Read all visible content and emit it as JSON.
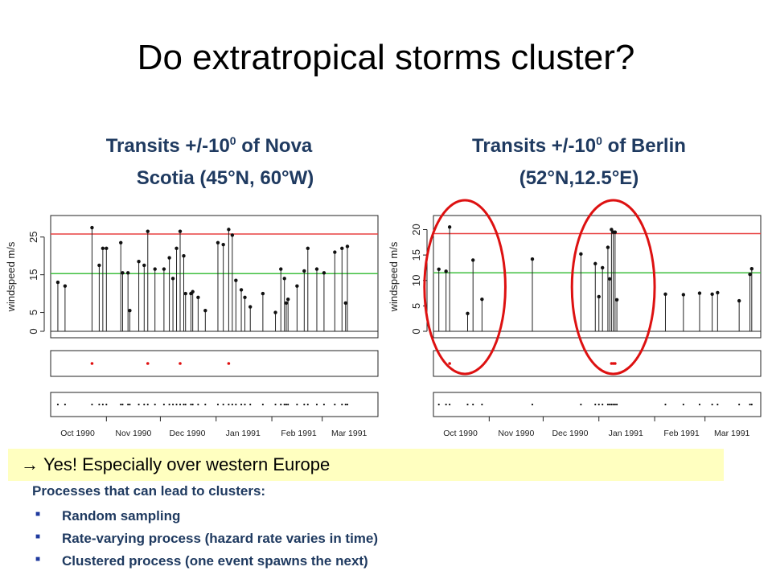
{
  "slide": {
    "title": "Do extratropical storms cluster?",
    "left_title": {
      "line1_pre": "Transits +/-10",
      "line1_sup": "0",
      "line1_post": " of Nova",
      "line2": "Scotia (45°N, 60°W)"
    },
    "right_title": {
      "line1_pre": "Transits +/-10",
      "line1_sup": "0",
      "line1_post": " of Berlin",
      "line2": "(52°N,12.5°E)"
    },
    "highlight": {
      "arrow": "→",
      "text": "Yes! Especially over western Europe"
    },
    "processes": {
      "heading": "Processes that can lead to clusters:",
      "items": [
        "Random sampling",
        "Rate-varying process (hazard rate varies in time)",
        "Clustered process (one event spawns the next)"
      ],
      "bullet_color": "#1f3a9e"
    }
  },
  "chart_data": [
    {
      "type": "lollipop",
      "panel": "Nova Scotia",
      "ylabel": "windspeed m/s",
      "ylim": [
        0,
        29
      ],
      "yticks": [
        0,
        5,
        15,
        25
      ],
      "xlim": [
        0,
        182
      ],
      "months": [
        {
          "label": "Oct 1990",
          "day": 15
        },
        {
          "label": "Nov 1990",
          "day": 46
        },
        {
          "label": "Dec 1990",
          "day": 76
        },
        {
          "label": "Jan 1991",
          "day": 107
        },
        {
          "label": "Feb 1991",
          "day": 138
        },
        {
          "label": "Mar 1991",
          "day": 166
        }
      ],
      "month_breaks": [
        31,
        61,
        92,
        123,
        151
      ],
      "thresholds": [
        {
          "value": 25.8,
          "color": "#e84040"
        },
        {
          "value": 15.3,
          "color": "#3fbf3f"
        }
      ],
      "events": [
        {
          "day": 4,
          "value": 13
        },
        {
          "day": 8,
          "value": 12
        },
        {
          "day": 23,
          "value": 27.5
        },
        {
          "day": 27,
          "value": 17.5
        },
        {
          "day": 29,
          "value": 22
        },
        {
          "day": 31,
          "value": 22
        },
        {
          "day": 39,
          "value": 23.5
        },
        {
          "day": 40,
          "value": 15.5
        },
        {
          "day": 43,
          "value": 15.5
        },
        {
          "day": 44,
          "value": 5.5
        },
        {
          "day": 49,
          "value": 18.5
        },
        {
          "day": 52,
          "value": 17.5
        },
        {
          "day": 54,
          "value": 26.5
        },
        {
          "day": 58,
          "value": 16.5
        },
        {
          "day": 63,
          "value": 16.5
        },
        {
          "day": 66,
          "value": 19.5
        },
        {
          "day": 68,
          "value": 14
        },
        {
          "day": 70,
          "value": 22
        },
        {
          "day": 72,
          "value": 26.5
        },
        {
          "day": 74,
          "value": 20
        },
        {
          "day": 75,
          "value": 10
        },
        {
          "day": 78,
          "value": 10
        },
        {
          "day": 79,
          "value": 10.5
        },
        {
          "day": 82,
          "value": 9
        },
        {
          "day": 86,
          "value": 5.5
        },
        {
          "day": 93,
          "value": 23.5
        },
        {
          "day": 96,
          "value": 23
        },
        {
          "day": 99,
          "value": 27
        },
        {
          "day": 101,
          "value": 25.5
        },
        {
          "day": 103,
          "value": 13.5
        },
        {
          "day": 106,
          "value": 11
        },
        {
          "day": 108,
          "value": 9
        },
        {
          "day": 111,
          "value": 6.5
        },
        {
          "day": 118,
          "value": 10
        },
        {
          "day": 125,
          "value": 5
        },
        {
          "day": 128,
          "value": 16.5
        },
        {
          "day": 130,
          "value": 14
        },
        {
          "day": 131,
          "value": 7.5
        },
        {
          "day": 132,
          "value": 8.5
        },
        {
          "day": 137,
          "value": 12
        },
        {
          "day": 141,
          "value": 16
        },
        {
          "day": 143,
          "value": 22
        },
        {
          "day": 148,
          "value": 16.5
        },
        {
          "day": 152,
          "value": 15.5
        },
        {
          "day": 158,
          "value": 21
        },
        {
          "day": 162,
          "value": 22
        },
        {
          "day": 164,
          "value": 7.5
        },
        {
          "day": 165,
          "value": 22.5
        }
      ],
      "exceed_days": [
        23,
        54,
        72,
        99
      ],
      "circles": []
    },
    {
      "type": "lollipop",
      "panel": "Berlin",
      "ylabel": "windspeed m/s",
      "ylim": [
        0,
        21.5
      ],
      "yticks": [
        0,
        5,
        10,
        15,
        20
      ],
      "xlim": [
        0,
        182
      ],
      "months": [
        {
          "label": "Oct 1990",
          "day": 15
        },
        {
          "label": "Nov 1990",
          "day": 46
        },
        {
          "label": "Dec 1990",
          "day": 76
        },
        {
          "label": "Jan 1991",
          "day": 107
        },
        {
          "label": "Feb 1991",
          "day": 138
        },
        {
          "label": "Mar 1991",
          "day": 166
        }
      ],
      "month_breaks": [
        31,
        61,
        92,
        123,
        151
      ],
      "thresholds": [
        {
          "value": 19.2,
          "color": "#e84040"
        },
        {
          "value": 11.5,
          "color": "#3fbf3f"
        }
      ],
      "events": [
        {
          "day": 3,
          "value": 12.2
        },
        {
          "day": 7,
          "value": 11.8
        },
        {
          "day": 9,
          "value": 20.5
        },
        {
          "day": 19,
          "value": 3.5
        },
        {
          "day": 22,
          "value": 14
        },
        {
          "day": 27,
          "value": 6.3
        },
        {
          "day": 55,
          "value": 14.2
        },
        {
          "day": 82,
          "value": 15.2
        },
        {
          "day": 90,
          "value": 13.3
        },
        {
          "day": 92,
          "value": 6.8
        },
        {
          "day": 94,
          "value": 12.5
        },
        {
          "day": 97,
          "value": 16.5
        },
        {
          "day": 99,
          "value": 20
        },
        {
          "day": 100,
          "value": 19.5
        },
        {
          "day": 101,
          "value": 19.5
        },
        {
          "day": 98,
          "value": 10.3
        },
        {
          "day": 102,
          "value": 6.2
        },
        {
          "day": 129,
          "value": 7.3
        },
        {
          "day": 139,
          "value": 7.2
        },
        {
          "day": 148,
          "value": 7.5
        },
        {
          "day": 155,
          "value": 7.3
        },
        {
          "day": 158,
          "value": 7.6
        },
        {
          "day": 170,
          "value": 6
        },
        {
          "day": 176,
          "value": 11.2
        },
        {
          "day": 177,
          "value": 12.3
        }
      ],
      "exceed_days": [
        9,
        99,
        100,
        101
      ],
      "circles": [
        {
          "from_day": -5,
          "to_day": 40,
          "color": "#dd1111"
        },
        {
          "from_day": 77,
          "to_day": 123,
          "color": "#dd1111"
        }
      ]
    }
  ]
}
